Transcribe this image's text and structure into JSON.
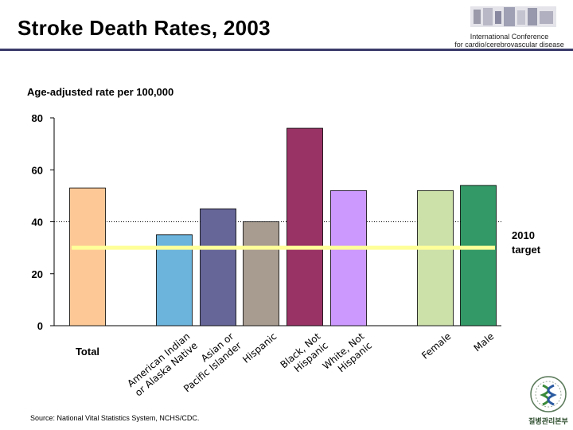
{
  "header": {
    "title": "Stroke Death Rates, 2003",
    "conference_line1": "International Conference",
    "conference_line2": "for cardio/cerebrovascular disease"
  },
  "footer": {
    "source": "Source: National Vital Statistics System, NCHS/CDC.",
    "seal_caption": "질병관리본부"
  },
  "chart_data": {
    "type": "bar",
    "ylabel": "Age-adjusted rate per 100,000",
    "ylim": [
      0,
      80
    ],
    "yticks": [
      0,
      20,
      40,
      60,
      80
    ],
    "categories": [
      "Total",
      "American Indian or Alaska Native",
      "Asian or Pacific Islander",
      "Hispanic",
      "Black, Not Hispanic",
      "White, Not Hispanic",
      "Female",
      "Male"
    ],
    "category_lines": [
      [
        "Total"
      ],
      [
        "American Indian",
        "or Alaska Native"
      ],
      [
        "Asian or",
        "Pacific Islander"
      ],
      [
        "Hispanic"
      ],
      [
        "Black, Not",
        "Hispanic"
      ],
      [
        "White, Not",
        "Hispanic"
      ],
      [
        "Female"
      ],
      [
        "Male"
      ]
    ],
    "values": [
      53,
      35,
      45,
      40,
      76,
      52,
      52,
      54
    ],
    "colors": [
      "#fdc896",
      "#6cb4dc",
      "#666699",
      "#a89c90",
      "#993366",
      "#cc99ff",
      "#cce0aa",
      "#339966"
    ],
    "target": {
      "value": 30,
      "label_line1": "2010",
      "label_line2": "target",
      "color": "#ffff99"
    },
    "reference_line": {
      "value": 40,
      "style": "dotted"
    },
    "grid": false,
    "legend": "none"
  }
}
